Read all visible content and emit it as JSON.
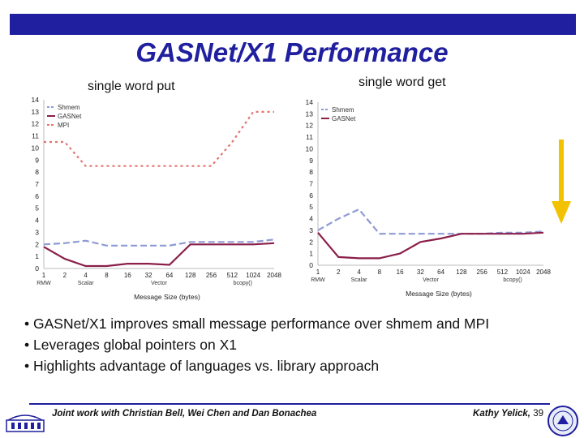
{
  "slide": {
    "title": "GASNet/X1 Performance",
    "bullets": [
      "• GASNet/X1 improves small message performance over shmem and MPI",
      "• Leverages global pointers on X1",
      "• Highlights advantage of languages vs. library approach"
    ],
    "credit": "Joint work with Christian Bell, Wei Chen and Dan Bonachea",
    "author": "Kathy Yelick, ",
    "page_number": "39",
    "accent_color": "#1f1f9f",
    "arrow_color": "#f2c200"
  },
  "chart_data": [
    {
      "type": "line",
      "title": "single word put",
      "xlabel": "Message Size (bytes)",
      "ylabel": "",
      "x": [
        "1",
        "2",
        "4",
        "8",
        "16",
        "32",
        "64",
        "128",
        "256",
        "512",
        "1024",
        "2048"
      ],
      "ylim": [
        0,
        14
      ],
      "yticks": [
        "0",
        "1",
        "2",
        "3",
        "4",
        "5",
        "6",
        "7",
        "8",
        "9",
        "10",
        "11",
        "12",
        "13",
        "14"
      ],
      "groups": [
        {
          "label": "RMW",
          "from": 0,
          "to": 0
        },
        {
          "label": "Scalar",
          "from": 1,
          "to": 3
        },
        {
          "label": "Vector",
          "from": 4,
          "to": 7
        },
        {
          "label": "bcopy()",
          "from": 8,
          "to": 11
        }
      ],
      "legend_position": "top-left",
      "series": [
        {
          "name": "Shmem",
          "color": "#8e9ad6",
          "dash": "8,4",
          "values": [
            2.0,
            2.1,
            2.3,
            1.9,
            1.9,
            1.9,
            1.9,
            2.2,
            2.2,
            2.2,
            2.2,
            2.4
          ]
        },
        {
          "name": "GASNet",
          "color": "#8a1f4a",
          "dash": "",
          "values": [
            1.8,
            0.8,
            0.2,
            0.2,
            0.4,
            0.4,
            0.3,
            2.0,
            2.0,
            2.0,
            2.0,
            2.1
          ]
        },
        {
          "name": "MPI",
          "color": "#e4736f",
          "dash": "3,4",
          "values": [
            10.5,
            10.5,
            8.5,
            8.5,
            8.5,
            8.5,
            8.5,
            8.5,
            8.5,
            10.5,
            13.0,
            13.0
          ]
        }
      ]
    },
    {
      "type": "line",
      "title": "single word get",
      "xlabel": "Message Size (bytes)",
      "ylabel": "",
      "x": [
        "1",
        "2",
        "4",
        "8",
        "16",
        "32",
        "64",
        "128",
        "256",
        "512",
        "1024",
        "2048"
      ],
      "ylim": [
        0,
        14
      ],
      "yticks": [
        "0",
        "1",
        "2",
        "3",
        "4",
        "5",
        "6",
        "7",
        "8",
        "9",
        "10",
        "11",
        "12",
        "13",
        "14"
      ],
      "groups": [
        {
          "label": "RMW",
          "from": 0,
          "to": 0
        },
        {
          "label": "Scalar",
          "from": 1,
          "to": 3
        },
        {
          "label": "Vector",
          "from": 4,
          "to": 7
        },
        {
          "label": "bcopy()",
          "from": 8,
          "to": 11
        }
      ],
      "legend_position": "top-left",
      "series": [
        {
          "name": "Shmem",
          "color": "#8e9ad6",
          "dash": "8,4",
          "values": [
            3.0,
            4.0,
            4.8,
            2.7,
            2.7,
            2.7,
            2.7,
            2.7,
            2.7,
            2.8,
            2.8,
            2.9
          ]
        },
        {
          "name": "GASNet",
          "color": "#8a1f4a",
          "dash": "",
          "values": [
            2.8,
            0.7,
            0.6,
            0.6,
            1.0,
            2.0,
            2.3,
            2.7,
            2.7,
            2.7,
            2.7,
            2.8
          ]
        }
      ]
    }
  ]
}
